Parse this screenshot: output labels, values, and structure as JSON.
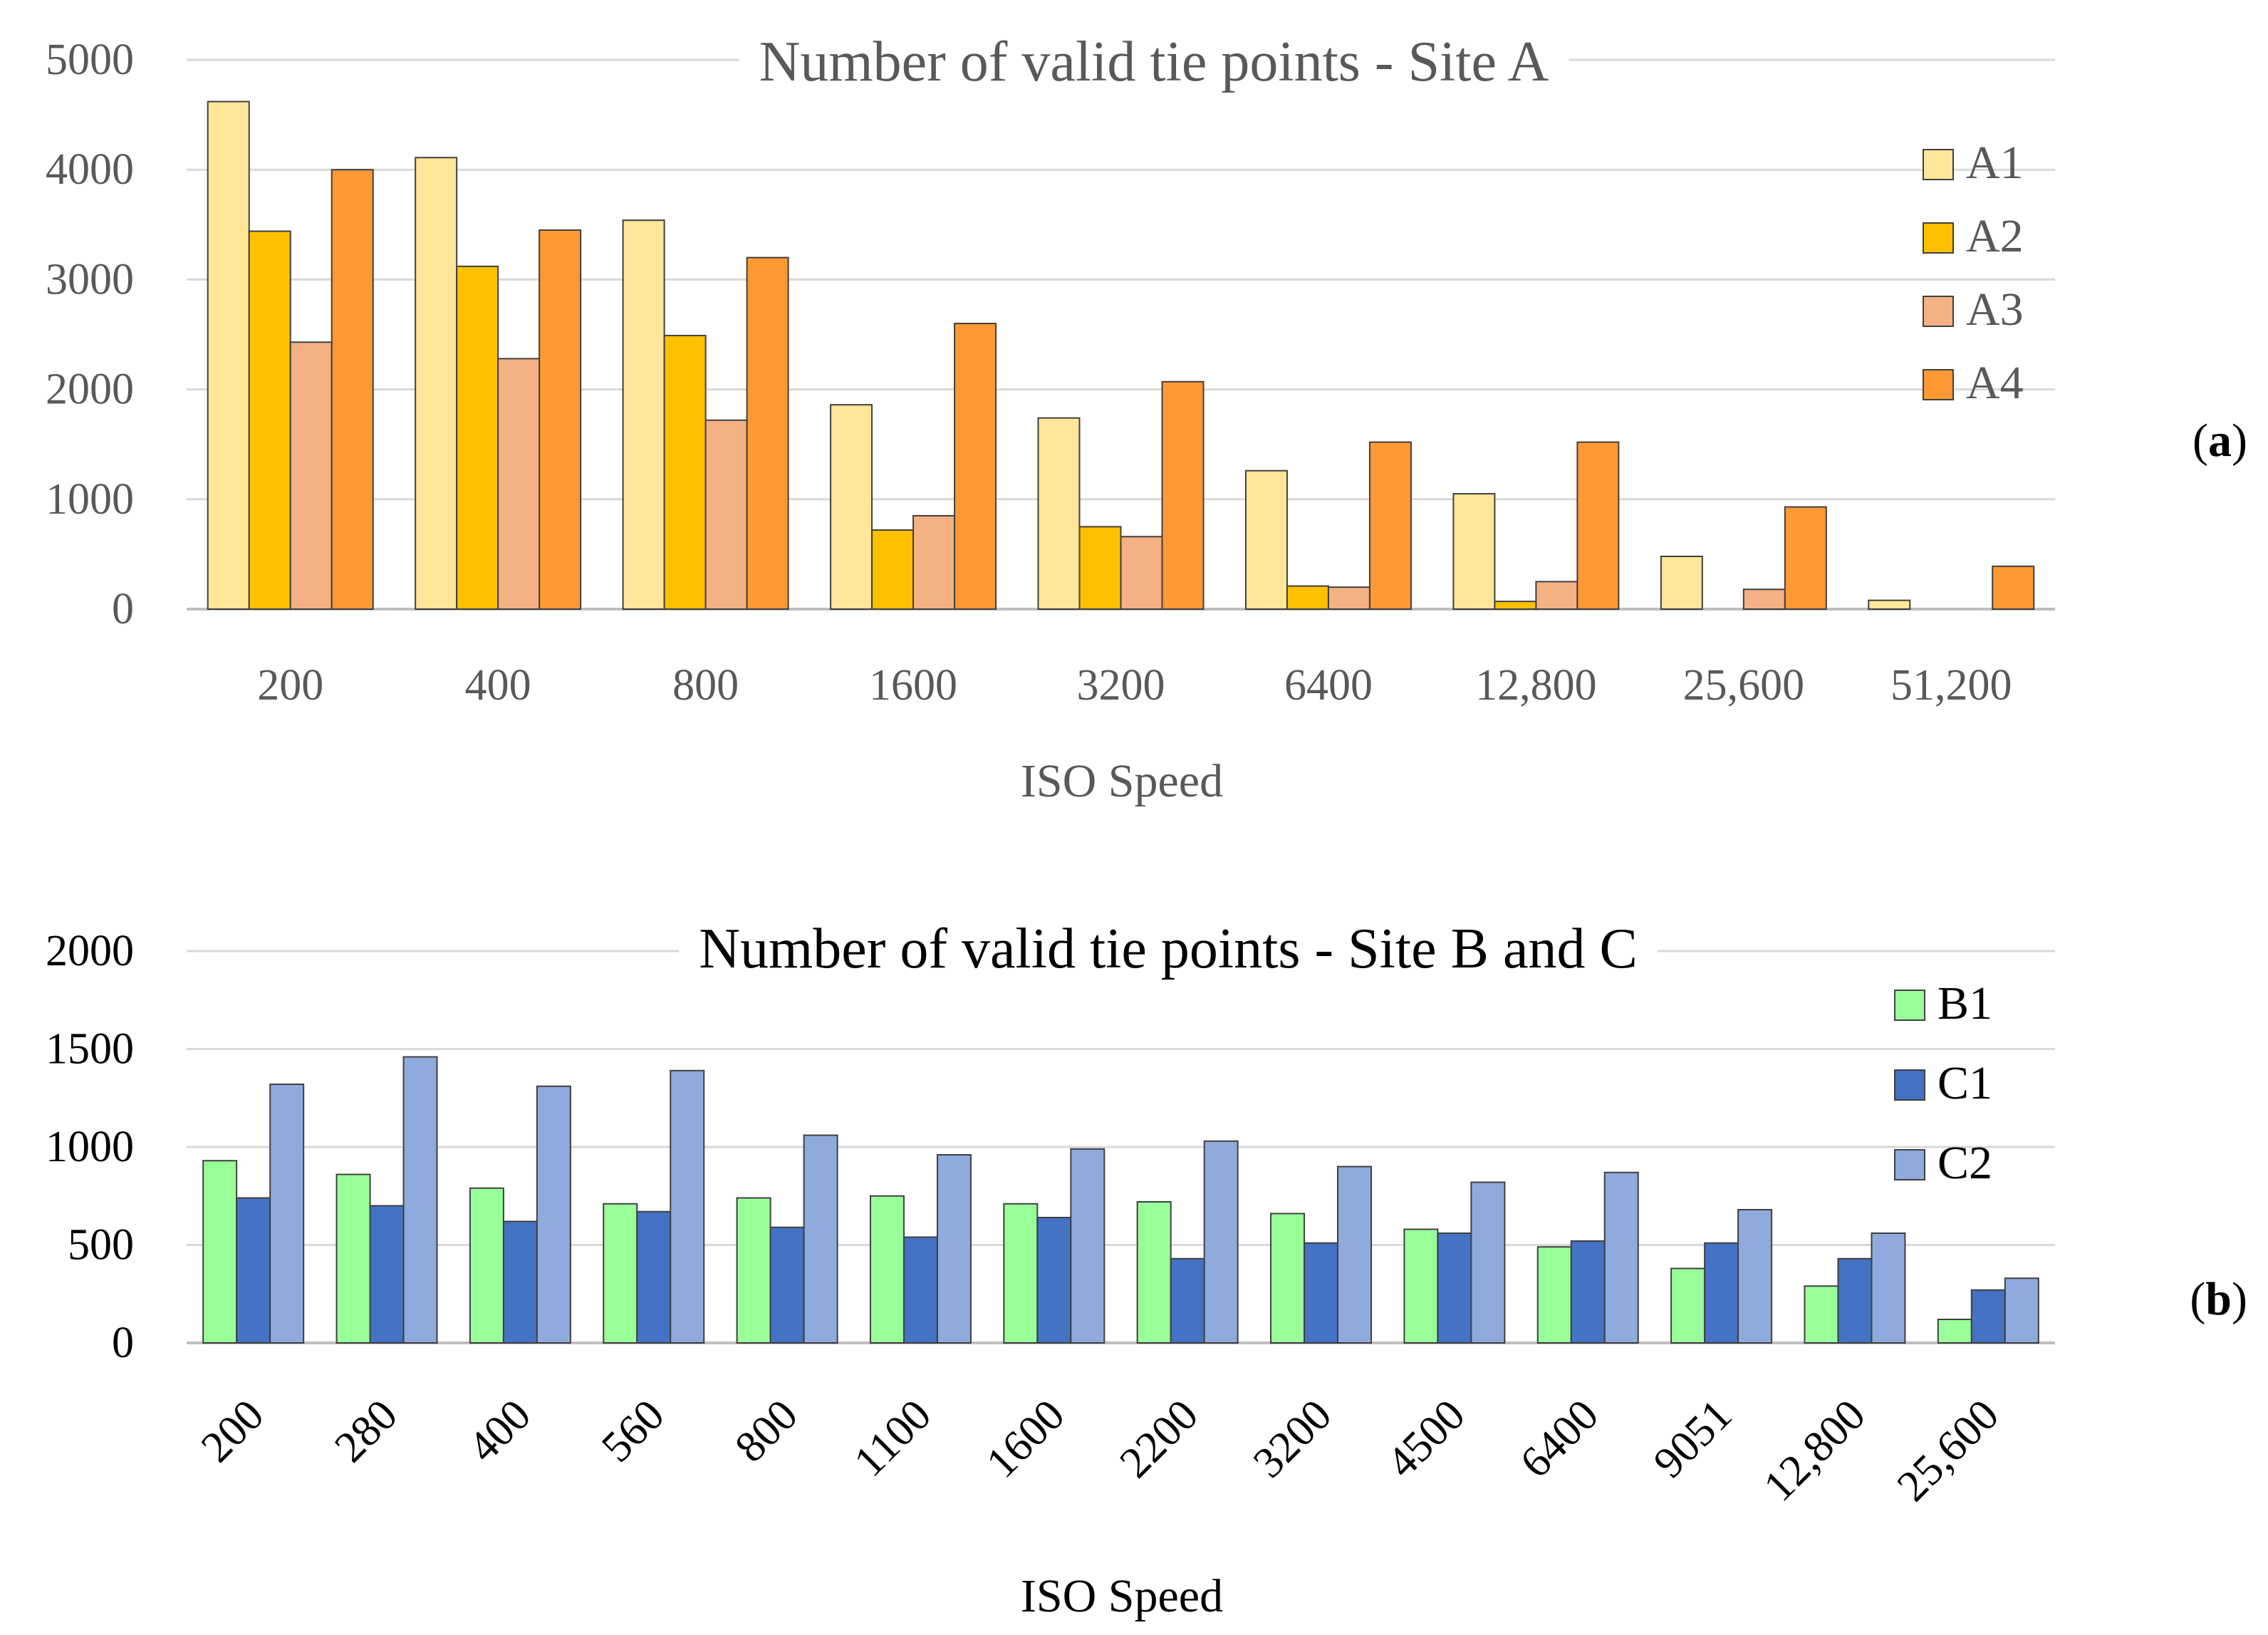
{
  "chart_data": [
    {
      "type": "bar",
      "title": "Number of valid tie points - Site A",
      "xlabel": "ISO Speed",
      "ylabel": "",
      "ylim": [
        0,
        5000
      ],
      "yticks": [
        "0",
        "1000",
        "2000",
        "3000",
        "4000",
        "5000"
      ],
      "categories": [
        "200",
        "400",
        "800",
        "1600",
        "3200",
        "6400",
        "12,800",
        "25,600",
        "51,200"
      ],
      "series": [
        {
          "name": "A1",
          "color": "#FFE699",
          "values": [
            4620,
            4110,
            3540,
            1860,
            1740,
            1260,
            1050,
            480,
            80
          ]
        },
        {
          "name": "A2",
          "color": "#FFC000",
          "values": [
            3440,
            3120,
            2490,
            720,
            750,
            210,
            70,
            0,
            0
          ]
        },
        {
          "name": "A3",
          "color": "#F4B183",
          "values": [
            2430,
            2280,
            1720,
            850,
            660,
            200,
            250,
            180,
            0
          ]
        },
        {
          "name": "A4",
          "color": "#FF9933",
          "values": [
            4000,
            3450,
            3200,
            2600,
            2070,
            1520,
            1520,
            930,
            390
          ]
        }
      ],
      "legend": "right",
      "panel_label": "(a)"
    },
    {
      "type": "bar",
      "title": "Number of valid tie points - Site B and C",
      "xlabel": "ISO Speed",
      "ylabel": "",
      "ylim": [
        0,
        2000
      ],
      "yticks": [
        "0",
        "500",
        "1000",
        "1500",
        "2000"
      ],
      "categories": [
        "200",
        "280",
        "400",
        "560",
        "800",
        "1100",
        "1600",
        "2200",
        "3200",
        "4500",
        "6400",
        "9051",
        "12,800",
        "25,600"
      ],
      "series": [
        {
          "name": "B1",
          "color": "#99FF99",
          "values": [
            930,
            860,
            790,
            710,
            740,
            750,
            710,
            720,
            660,
            580,
            490,
            380,
            290,
            120
          ]
        },
        {
          "name": "C1",
          "color": "#4472C4",
          "values": [
            740,
            700,
            620,
            670,
            590,
            540,
            640,
            430,
            510,
            560,
            520,
            510,
            430,
            270
          ]
        },
        {
          "name": "C2",
          "color": "#8FAADC",
          "values": [
            1320,
            1460,
            1310,
            1390,
            1060,
            960,
            990,
            1030,
            900,
            820,
            870,
            680,
            560,
            330
          ]
        }
      ],
      "legend": "right",
      "panel_label": "(b)"
    }
  ]
}
